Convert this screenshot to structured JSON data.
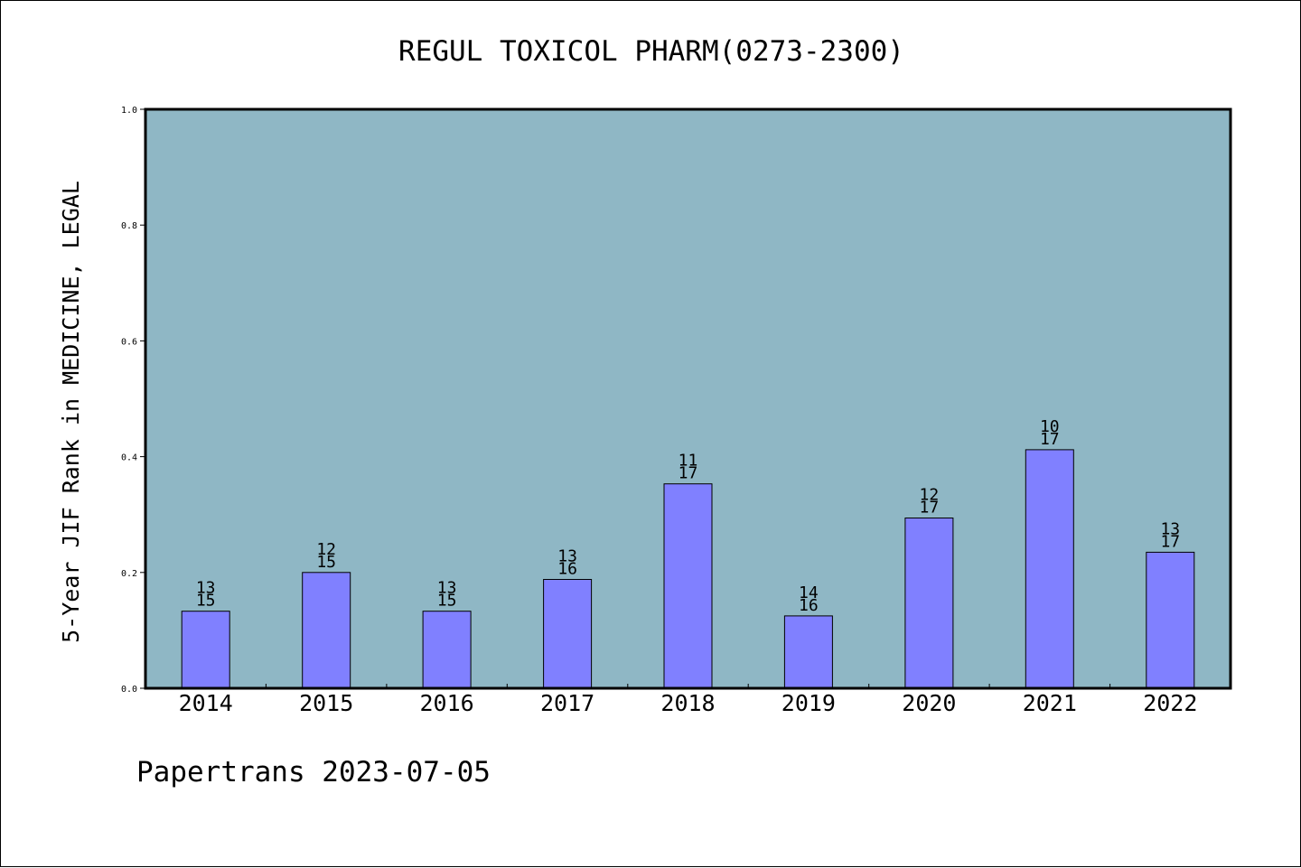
{
  "chart_data": {
    "type": "bar",
    "title": "REGUL TOXICOL PHARM(0273-2300)",
    "ylabel": "5-Year JIF Rank in MEDICINE, LEGAL",
    "xlabel": "",
    "ylim": [
      0,
      1.0
    ],
    "yticks": [
      "0.0",
      "0.2",
      "0.4",
      "0.6",
      "0.8",
      "1.0"
    ],
    "ytick_values": [
      0.0,
      0.2,
      0.4,
      0.6,
      0.8,
      1.0
    ],
    "categories": [
      "2014",
      "2015",
      "2016",
      "2017",
      "2018",
      "2019",
      "2020",
      "2021",
      "2022"
    ],
    "values": [
      0.133,
      0.2,
      0.133,
      0.188,
      0.353,
      0.125,
      0.294,
      0.412,
      0.235
    ],
    "rank_labels": [
      [
        "13",
        "15"
      ],
      [
        "12",
        "15"
      ],
      [
        "13",
        "15"
      ],
      [
        "13",
        "16"
      ],
      [
        "11",
        "17"
      ],
      [
        "14",
        "16"
      ],
      [
        "12",
        "17"
      ],
      [
        "10",
        "17"
      ],
      [
        "13",
        "17"
      ]
    ],
    "grid": false,
    "colors": {
      "plot_background": "#8fb7c5",
      "bar_fill": "#8080ff",
      "axis": "#000000"
    }
  },
  "footer": "Papertrans 2023-07-05"
}
